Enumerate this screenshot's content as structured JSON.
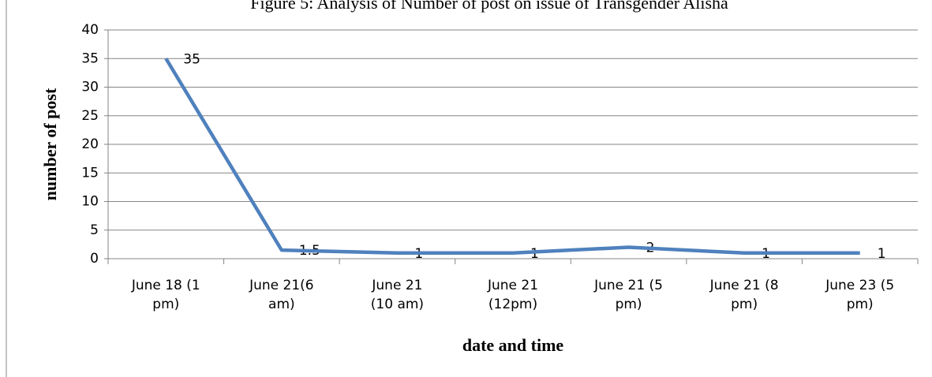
{
  "chart_data": {
    "type": "line",
    "title": "Figure 5: Analysis of Number of post on issue of Transgender Alisha",
    "xlabel": "date and time",
    "ylabel": "number of post",
    "categories": [
      "June 18 (1 pm)",
      "June 21(6 am)",
      "June 21 (10 am)",
      "June 21 (12pm)",
      "June 21 (5 pm)",
      "June 21 (8 pm)",
      "June 23 (5 pm)"
    ],
    "series": [
      {
        "name": "number of post",
        "color": "#4f81bd",
        "values": [
          35,
          1.5,
          1,
          1,
          2,
          1,
          1
        ]
      }
    ],
    "ylim": [
      0,
      40
    ],
    "yticks": [
      0,
      5,
      10,
      15,
      20,
      25,
      30,
      35,
      40
    ],
    "grid": true
  }
}
